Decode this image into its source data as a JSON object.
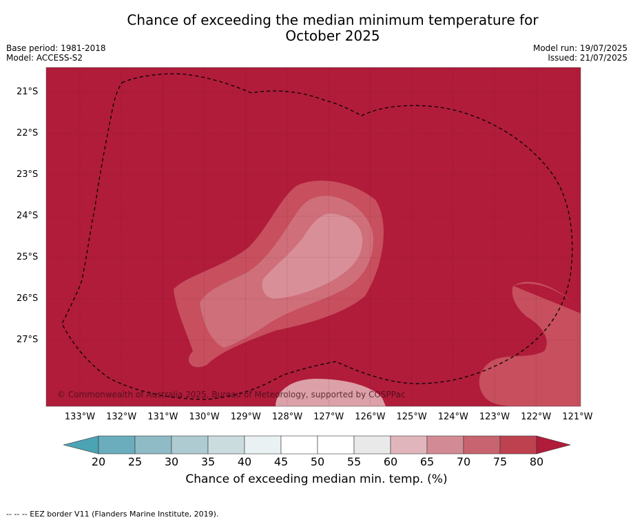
{
  "title_line1": "Chance of exceeding the median minimum temperature for",
  "title_line2": "October 2025",
  "base_period": "Base period: 1981-2018",
  "model": "Model: ACCESS-S2",
  "model_run": "Model run: 19/07/2025",
  "issued": "Issued: 21/07/2025",
  "copyright": "© Commonwealth of Australia 2025, Bureau of Meteorology, supported by COSPPac",
  "footer": "--  --  -- EEZ border V11 (Flanders Marine Institute, 2019).",
  "map": {
    "lat_labels": [
      "21°S",
      "22°S",
      "23°S",
      "24°S",
      "25°S",
      "26°S",
      "27°S"
    ],
    "lon_labels": [
      "133°W",
      "132°W",
      "131°W",
      "130°W",
      "129°W",
      "128°W",
      "127°W",
      "126°W",
      "125°W",
      "124°W",
      "123°W",
      "122°W",
      "121°W"
    ],
    "background_color": "#b01c3a"
  },
  "colorbar": {
    "ticks": [
      "20",
      "25",
      "30",
      "35",
      "40",
      "45",
      "50",
      "55",
      "60",
      "65",
      "70",
      "75",
      "80"
    ],
    "colors": [
      "#6badbd",
      "#8ebbc6",
      "#aecbd1",
      "#cbdcdf",
      "#eaf1f3",
      "#ffffff",
      "#ffffff",
      "#e9e9e9",
      "#e0b6bc",
      "#d28b94",
      "#c8646f",
      "#be4150"
    ],
    "under_color": "#4ca3b3",
    "over_color": "#b01c3a",
    "label": "Chance of exceeding median min. temp. (%)"
  }
}
